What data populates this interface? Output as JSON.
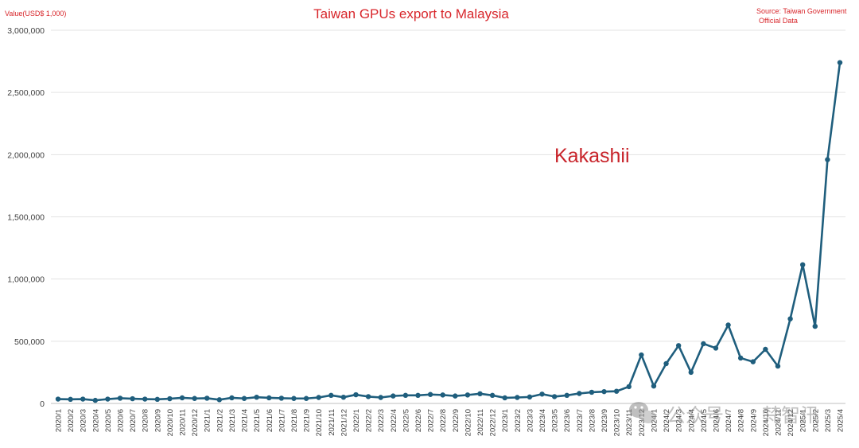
{
  "chart_data": {
    "type": "line",
    "title": "Taiwan GPUs export to Malaysia",
    "ylabel": "Value(USD$ 1,000)",
    "source": "Source: Taiwan Government Official Data",
    "annotation": "Kakashii",
    "ylim": [
      0,
      3000000
    ],
    "yticks": [
      "0",
      "500,000",
      "1,000,000",
      "1,500,000",
      "2,000,000",
      "2,500,000",
      "3,000,000"
    ],
    "ytick_values": [
      0,
      500000,
      1000000,
      1500000,
      2000000,
      2500000,
      3000000
    ],
    "grid": true,
    "x": [
      "2020/1",
      "2020/2",
      "2020/3",
      "2020/4",
      "2020/5",
      "2020/6",
      "2020/7",
      "2020/8",
      "2020/9",
      "2020/10",
      "2020/11",
      "2020/12",
      "2021/1",
      "2021/2",
      "2021/3",
      "2021/4",
      "2021/5",
      "2021/6",
      "2021/7",
      "2021/8",
      "2021/9",
      "2021/10",
      "2021/11",
      "2021/12",
      "2022/1",
      "2022/2",
      "2022/3",
      "2022/4",
      "2022/5",
      "2022/6",
      "2022/7",
      "2022/8",
      "2022/9",
      "2022/10",
      "2022/11",
      "2022/12",
      "2023/1",
      "2023/2",
      "2023/3",
      "2023/4",
      "2023/5",
      "2023/6",
      "2023/7",
      "2023/8",
      "2023/9",
      "2023/10",
      "2023/11",
      "2023/12",
      "2024/1",
      "2024/2",
      "2024/3",
      "2024/4",
      "2024/5",
      "2024/6",
      "2024/7",
      "2024/8",
      "2024/9",
      "2024/10",
      "2024/11",
      "2024/12",
      "2025/1",
      "2025/2",
      "2025/3",
      "2025/4"
    ],
    "series": [
      {
        "color": "#1f5e7d",
        "values": [
          35000,
          33000,
          35000,
          25000,
          35000,
          42000,
          38000,
          35000,
          33000,
          38000,
          45000,
          40000,
          42000,
          30000,
          45000,
          40000,
          50000,
          45000,
          42000,
          40000,
          40000,
          48000,
          65000,
          50000,
          70000,
          55000,
          48000,
          60000,
          65000,
          65000,
          72000,
          68000,
          60000,
          68000,
          78000,
          65000,
          45000,
          48000,
          52000,
          75000,
          55000,
          65000,
          80000,
          90000,
          95000,
          98000,
          135000,
          390000,
          140000,
          320000,
          465000,
          250000,
          480000,
          445000,
          630000,
          365000,
          335000,
          435000,
          300000,
          680000,
          1115000,
          620000,
          1960000,
          2740000
        ]
      }
    ]
  },
  "watermark": {
    "platform": "公众号",
    "account": "梵智汛"
  }
}
